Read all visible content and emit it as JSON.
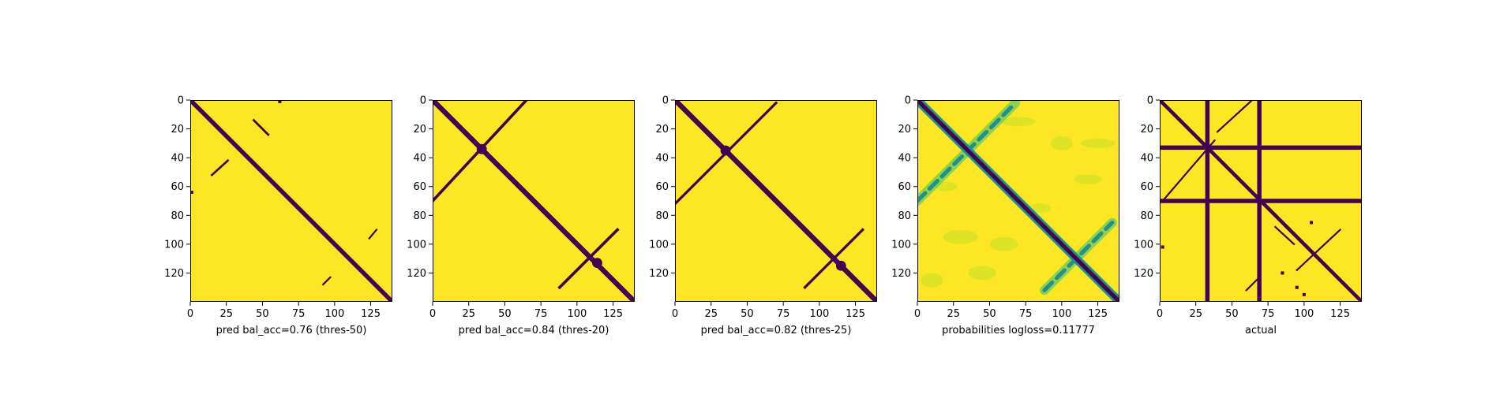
{
  "colors": {
    "background": "#fde725",
    "class_low": "#440154",
    "mid_teal": "#21918c",
    "mid_green": "#5ec962",
    "light_green": "#b8de29",
    "axis": "#000000"
  },
  "chart_data": [
    {
      "type": "heatmap",
      "xlabel": "pred bal_acc=0.76 (thres-50)",
      "xlim": [
        0,
        140
      ],
      "ylim": [
        140,
        0
      ],
      "xticks": [
        0,
        25,
        50,
        75,
        100,
        125
      ],
      "yticks": [
        0,
        20,
        40,
        60,
        80,
        100,
        120
      ],
      "xtick_labels": [
        "0",
        "25",
        "50",
        "75",
        "100",
        "125"
      ],
      "ytick_labels": [
        "0",
        "20",
        "40",
        "60",
        "80",
        "100",
        "120"
      ],
      "colormap": "viridis",
      "features": {
        "main_diagonal": {
          "from": [
            0,
            0
          ],
          "to": [
            140,
            140
          ],
          "width": 3
        },
        "segments": [
          {
            "from": [
              44,
              14
            ],
            "to": [
              54,
              24
            ],
            "width": 1.5
          },
          {
            "from": [
              15,
              52
            ],
            "to": [
              26,
              42
            ],
            "width": 1.5
          },
          {
            "from": [
              124,
              96
            ],
            "to": [
              129,
              90
            ],
            "width": 1.2
          },
          {
            "from": [
              92,
              128
            ],
            "to": [
              97,
              123
            ],
            "width": 1.2
          }
        ],
        "dots": [
          [
            62,
            1
          ],
          [
            1,
            64
          ]
        ]
      }
    },
    {
      "type": "heatmap",
      "xlabel": "pred bal_acc=0.84 (thres-20)",
      "xlim": [
        0,
        140
      ],
      "ylim": [
        140,
        0
      ],
      "xticks": [
        0,
        25,
        50,
        75,
        100,
        125
      ],
      "yticks": [
        0,
        20,
        40,
        60,
        80,
        100,
        120
      ],
      "xtick_labels": [
        "0",
        "25",
        "50",
        "75",
        "100",
        "125"
      ],
      "ytick_labels": [
        "0",
        "20",
        "40",
        "60",
        "80",
        "100",
        "120"
      ],
      "colormap": "viridis",
      "features": {
        "main_diagonal": {
          "from": [
            0,
            0
          ],
          "to": [
            140,
            140
          ],
          "width": 3.5
        },
        "segments": [
          {
            "from": [
              0,
              70
            ],
            "to": [
              65,
              0
            ],
            "width": 2
          },
          {
            "from": [
              88,
              130
            ],
            "to": [
              128,
              90
            ],
            "width": 2
          }
        ],
        "blobs": [
          [
            34,
            34
          ],
          [
            114,
            113
          ]
        ]
      }
    },
    {
      "type": "heatmap",
      "xlabel": "pred bal_acc=0.82 (thres-25)",
      "xlim": [
        0,
        140
      ],
      "ylim": [
        140,
        0
      ],
      "xticks": [
        0,
        25,
        50,
        75,
        100,
        125
      ],
      "yticks": [
        0,
        20,
        40,
        60,
        80,
        100,
        120
      ],
      "xtick_labels": [
        "0",
        "25",
        "50",
        "75",
        "100",
        "125"
      ],
      "ytick_labels": [
        "0",
        "20",
        "40",
        "60",
        "80",
        "100",
        "120"
      ],
      "colormap": "viridis",
      "features": {
        "main_diagonal": {
          "from": [
            0,
            0
          ],
          "to": [
            140,
            140
          ],
          "width": 3.5
        },
        "segments": [
          {
            "from": [
              0,
              72
            ],
            "to": [
              70,
              2
            ],
            "width": 1.8
          },
          {
            "from": [
              90,
              130
            ],
            "to": [
              130,
              90
            ],
            "width": 1.8
          }
        ],
        "blobs": [
          [
            35,
            35
          ],
          [
            115,
            115
          ]
        ]
      }
    },
    {
      "type": "heatmap",
      "xlabel": "probabilities logloss=0.11777",
      "xlim": [
        0,
        140
      ],
      "ylim": [
        140,
        0
      ],
      "xticks": [
        0,
        25,
        50,
        75,
        100,
        125
      ],
      "yticks": [
        0,
        20,
        40,
        60,
        80,
        100,
        120
      ],
      "xtick_labels": [
        "0",
        "25",
        "50",
        "75",
        "100",
        "125"
      ],
      "ytick_labels": [
        "0",
        "20",
        "40",
        "60",
        "80",
        "100",
        "120"
      ],
      "colormap": "viridis",
      "features": {
        "main_diagonal": {
          "from": [
            0,
            0
          ],
          "to": [
            140,
            140
          ],
          "width": 4
        },
        "segments": [
          {
            "from": [
              0,
              70
            ],
            "to": [
              68,
              2
            ],
            "width": 4
          },
          {
            "from": [
              88,
              132
            ],
            "to": [
              135,
              85
            ],
            "width": 4
          }
        ],
        "noise_patches": [
          [
            20,
            60
          ],
          [
            45,
            120
          ],
          [
            70,
            15
          ],
          [
            100,
            30
          ],
          [
            118,
            55
          ],
          [
            30,
            95
          ],
          [
            85,
            75
          ],
          [
            60,
            100
          ],
          [
            125,
            30
          ],
          [
            10,
            125
          ]
        ]
      }
    },
    {
      "type": "heatmap",
      "xlabel": "actual",
      "xlim": [
        0,
        140
      ],
      "ylim": [
        140,
        0
      ],
      "xticks": [
        0,
        25,
        50,
        75,
        100,
        125
      ],
      "yticks": [
        0,
        20,
        40,
        60,
        80,
        100,
        120
      ],
      "xtick_labels": [
        "0",
        "25",
        "50",
        "75",
        "100",
        "125"
      ],
      "ytick_labels": [
        "0",
        "20",
        "40",
        "60",
        "80",
        "100",
        "120"
      ],
      "colormap": "viridis",
      "features": {
        "main_diagonal": {
          "from": [
            0,
            0
          ],
          "to": [
            140,
            140
          ],
          "width": 2.5
        },
        "bands": [
          {
            "orientation": "vertical",
            "center": 33,
            "width": 3
          },
          {
            "orientation": "vertical",
            "center": 69,
            "width": 3
          },
          {
            "orientation": "horizontal",
            "center": 33,
            "width": 3
          },
          {
            "orientation": "horizontal",
            "center": 70,
            "width": 3
          }
        ],
        "segments": [
          {
            "from": [
              2,
              70
            ],
            "to": [
              38,
              28
            ],
            "width": 1.2
          },
          {
            "from": [
              40,
              22
            ],
            "to": [
              64,
              0
            ],
            "width": 1.2
          },
          {
            "from": [
              60,
              132
            ],
            "to": [
              68,
              124
            ],
            "width": 1.2
          },
          {
            "from": [
              95,
              118
            ],
            "to": [
              125,
              90
            ],
            "width": 1.2
          },
          {
            "from": [
              80,
              88
            ],
            "to": [
              93,
              100
            ],
            "width": 1.2
          }
        ],
        "dots": [
          [
            2,
            102
          ],
          [
            85,
            120
          ],
          [
            95,
            130
          ],
          [
            100,
            135
          ],
          [
            105,
            85
          ]
        ]
      }
    }
  ]
}
